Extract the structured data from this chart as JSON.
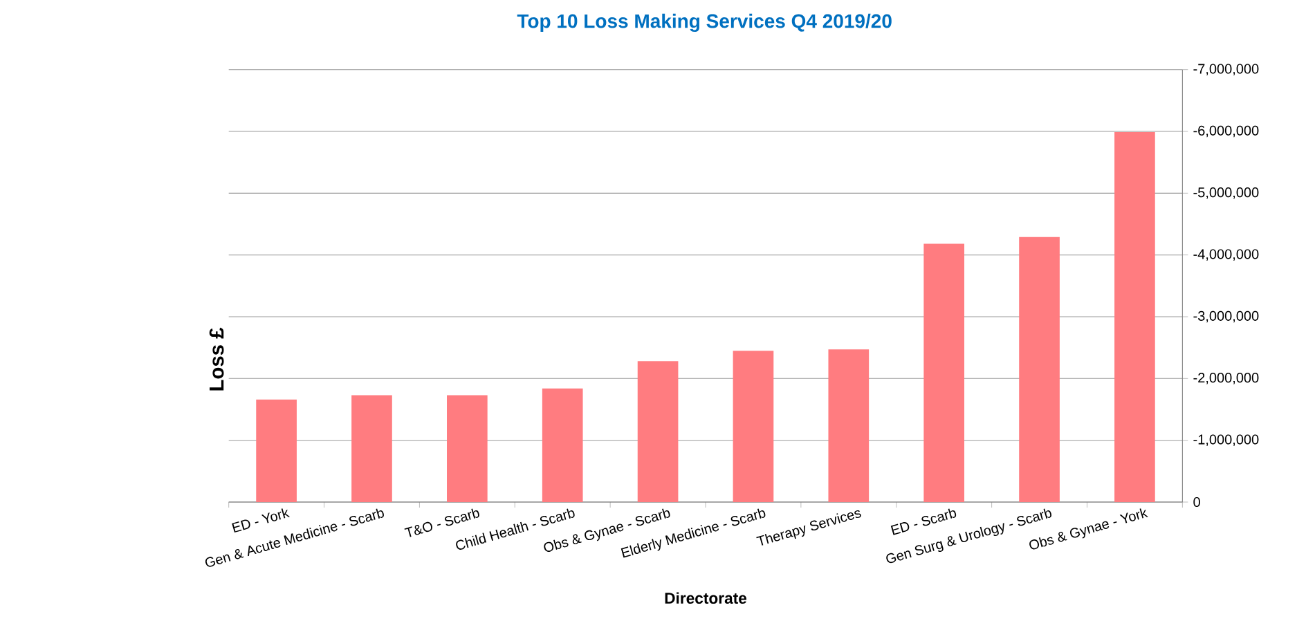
{
  "chart_data": {
    "type": "bar",
    "title": "Top 10 Loss Making Services Q4 2019/20",
    "xlabel": "Directorate",
    "ylabel": "Loss £",
    "categories": [
      "ED - York",
      "Gen & Acute Medicine - Scarb",
      "T&O - Scarb",
      "Child Health - Scarb",
      "Obs & Gynae - Scarb",
      "Elderly Medicine - Scarb",
      "Therapy Services",
      "ED - Scarb",
      "Gen Surg & Urology - Scarb",
      "Obs & Gynae - York"
    ],
    "values": [
      -1660000,
      -1730000,
      -1730000,
      -1840000,
      -2280000,
      -2450000,
      -2470000,
      -4180000,
      -4290000,
      -5990000
    ],
    "color": "#ff7c80",
    "ylim": [
      0,
      -7000000
    ],
    "yticks": [
      {
        "value": 0,
        "label": "0"
      },
      {
        "value": -1000000,
        "label": "-1,000,000"
      },
      {
        "value": -2000000,
        "label": "-2,000,000"
      },
      {
        "value": -3000000,
        "label": "-3,000,000"
      },
      {
        "value": -4000000,
        "label": "-4,000,000"
      },
      {
        "value": -5000000,
        "label": "-5,000,000"
      },
      {
        "value": -6000000,
        "label": "-6,000,000"
      },
      {
        "value": -7000000,
        "label": "-7,000,000"
      }
    ],
    "grid": "y"
  }
}
